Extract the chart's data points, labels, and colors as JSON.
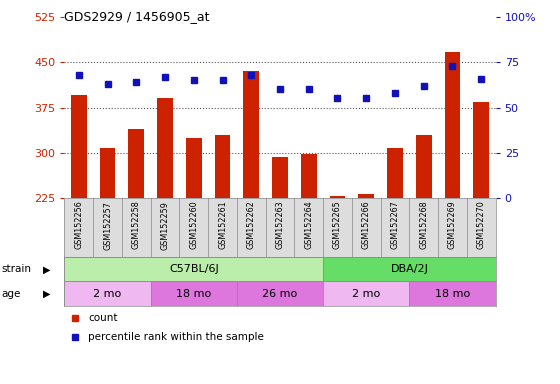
{
  "title": "GDS2929 / 1456905_at",
  "samples": [
    "GSM152256",
    "GSM152257",
    "GSM152258",
    "GSM152259",
    "GSM152260",
    "GSM152261",
    "GSM152262",
    "GSM152263",
    "GSM152264",
    "GSM152265",
    "GSM152266",
    "GSM152267",
    "GSM152268",
    "GSM152269",
    "GSM152270"
  ],
  "counts": [
    395,
    308,
    340,
    390,
    325,
    330,
    435,
    292,
    297,
    228,
    232,
    308,
    330,
    468,
    385
  ],
  "percentile_ranks": [
    68,
    63,
    64,
    67,
    65,
    65,
    68,
    60,
    60,
    55,
    55,
    58,
    62,
    73,
    66
  ],
  "ylim_left": [
    225,
    525
  ],
  "ylim_right": [
    0,
    100
  ],
  "yticks_left": [
    225,
    300,
    375,
    450,
    525
  ],
  "yticks_right": [
    0,
    25,
    50,
    75,
    100
  ],
  "bar_color": "#cc2200",
  "dot_color": "#1111bb",
  "strain_groups": [
    {
      "label": "C57BL/6J",
      "start": 0,
      "end": 9,
      "color": "#bbeeaa"
    },
    {
      "label": "DBA/2J",
      "start": 9,
      "end": 15,
      "color": "#66dd66"
    }
  ],
  "age_groups": [
    {
      "label": "2 mo",
      "start": 0,
      "end": 3,
      "color": "#f0b8f0"
    },
    {
      "label": "18 mo",
      "start": 3,
      "end": 6,
      "color": "#dd77dd"
    },
    {
      "label": "26 mo",
      "start": 6,
      "end": 9,
      "color": "#dd77dd"
    },
    {
      "label": "2 mo",
      "start": 9,
      "end": 12,
      "color": "#f0b8f0"
    },
    {
      "label": "18 mo",
      "start": 12,
      "end": 15,
      "color": "#dd77dd"
    }
  ],
  "legend_items": [
    {
      "label": "count",
      "color": "#cc2200"
    },
    {
      "label": "percentile rank within the sample",
      "color": "#1111bb"
    }
  ],
  "bg_color": "#ffffff",
  "plot_bg_color": "#ffffff",
  "grid_dotted_color": "#555555",
  "tick_color_left": "#cc2200",
  "tick_color_right": "#1111bb",
  "xticklabel_bg": "#dddddd",
  "bar_width": 0.55
}
